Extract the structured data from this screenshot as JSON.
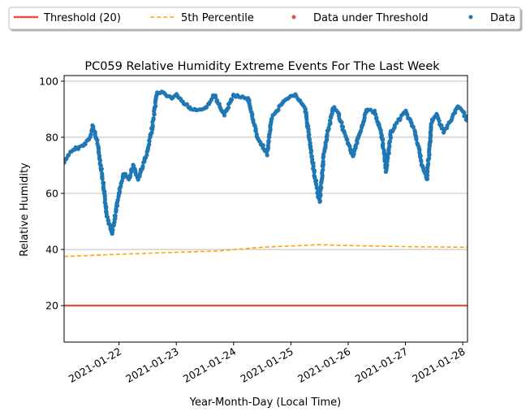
{
  "chart_data": {
    "type": "scatter",
    "title": "PC059 Relative Humidity Extreme Events For The Last Week",
    "xlabel": "Year-Month-Day (Local Time)",
    "ylabel": "Relative Humidity",
    "x_ticks": [
      "2021-01-22",
      "2021-01-23",
      "2021-01-24",
      "2021-01-25",
      "2021-01-26",
      "2021-01-27",
      "2021-01-28"
    ],
    "y_ticks": [
      20,
      40,
      60,
      80,
      100
    ],
    "xlim": [
      "2021-01-21 01:00",
      "2021-01-28 02:00"
    ],
    "ylim": [
      7,
      102
    ],
    "grid": "horizontal",
    "legend_position": "top",
    "threshold": {
      "name": "Threshold (20)",
      "value": 20,
      "color": "#e8504a"
    },
    "percentile": {
      "name": "5th Percentile",
      "color": "#ffa500",
      "x": [
        "2021-01-21 01:00",
        "2021-01-22 00:00",
        "2021-01-23 00:00",
        "2021-01-23 18:00",
        "2021-01-24 12:00",
        "2021-01-25 12:00",
        "2021-01-26 00:00",
        "2021-01-27 00:00",
        "2021-01-28 02:00"
      ],
      "y": [
        37.5,
        38.3,
        39.0,
        39.5,
        40.8,
        41.7,
        41.4,
        41.0,
        40.8
      ]
    },
    "under_threshold": {
      "name": "Data under Threshold",
      "color": "#e8504a",
      "x": [],
      "y": []
    },
    "series": [
      {
        "name": "Data",
        "color": "#1f77b4",
        "x": [
          "2021-01-21 01:00",
          "2021-01-21 03:00",
          "2021-01-21 06:00",
          "2021-01-21 09:00",
          "2021-01-21 12:00",
          "2021-01-21 13:00",
          "2021-01-21 15:00",
          "2021-01-21 17:00",
          "2021-01-21 19:00",
          "2021-01-21 21:00",
          "2021-01-21 22:00",
          "2021-01-22 00:00",
          "2021-01-22 02:00",
          "2021-01-22 04:00",
          "2021-01-22 06:00",
          "2021-01-22 08:00",
          "2021-01-22 10:00",
          "2021-01-22 12:00",
          "2021-01-22 14:00",
          "2021-01-22 16:00",
          "2021-01-22 18:00",
          "2021-01-22 20:00",
          "2021-01-22 22:00",
          "2021-01-23 00:00",
          "2021-01-23 06:00",
          "2021-01-23 12:00",
          "2021-01-23 16:00",
          "2021-01-23 20:00",
          "2021-01-24 00:00",
          "2021-01-24 06:00",
          "2021-01-24 10:00",
          "2021-01-24 14:00",
          "2021-01-24 16:00",
          "2021-01-24 18:00",
          "2021-01-24 20:00",
          "2021-01-24 22:00",
          "2021-01-25 02:00",
          "2021-01-25 06:00",
          "2021-01-25 10:00",
          "2021-01-25 12:00",
          "2021-01-25 14:00",
          "2021-01-25 15:00",
          "2021-01-25 17:00",
          "2021-01-25 18:00",
          "2021-01-25 20:00",
          "2021-01-25 23:00",
          "2021-01-26 02:00",
          "2021-01-26 05:00",
          "2021-01-26 08:00",
          "2021-01-26 11:00",
          "2021-01-26 14:00",
          "2021-01-26 16:00",
          "2021-01-26 18:00",
          "2021-01-26 21:00",
          "2021-01-27 00:00",
          "2021-01-27 02:00",
          "2021-01-27 04:00",
          "2021-01-27 07:00",
          "2021-01-27 09:00",
          "2021-01-27 11:00",
          "2021-01-27 13:00",
          "2021-01-27 16:00",
          "2021-01-27 19:00",
          "2021-01-27 22:00",
          "2021-01-28 00:00",
          "2021-01-28 02:00"
        ],
        "y": [
          71,
          74,
          76,
          77,
          80,
          84,
          78,
          66,
          52,
          46,
          50,
          60,
          67,
          65,
          70,
          65,
          70,
          75,
          84,
          96,
          96,
          95,
          94,
          95,
          90,
          90,
          95,
          88,
          95,
          94,
          80,
          74,
          87,
          89,
          92,
          94,
          95,
          90,
          66,
          57,
          75,
          80,
          88,
          91,
          88,
          80,
          73,
          82,
          90,
          89,
          81,
          68,
          82,
          86,
          89,
          86,
          82,
          70,
          65,
          86,
          88,
          82,
          86,
          91,
          89,
          86
        ]
      }
    ]
  }
}
